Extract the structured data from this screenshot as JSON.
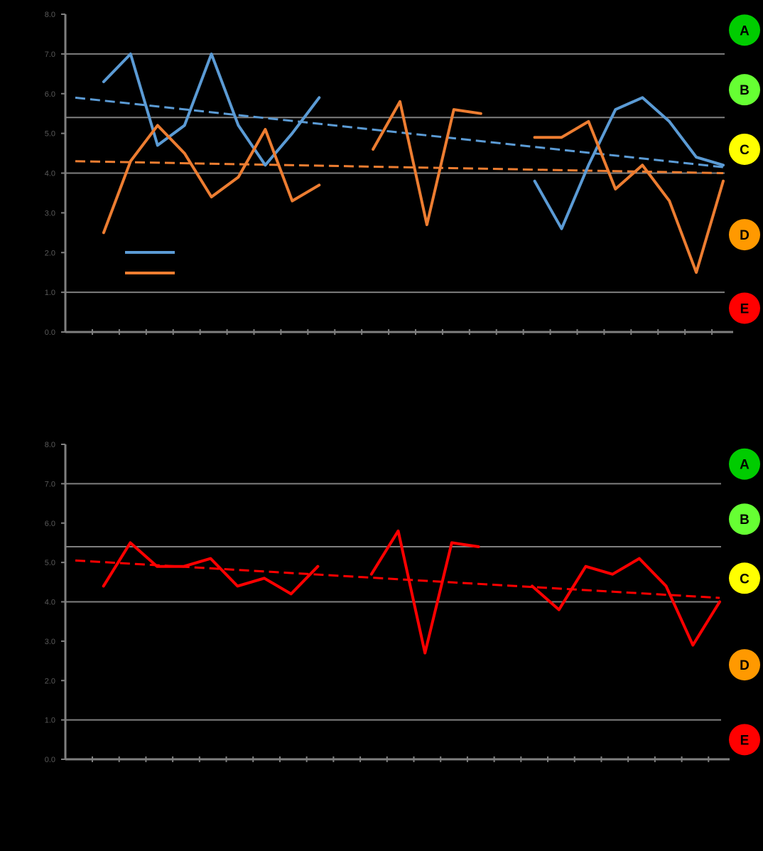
{
  "colors": {
    "background": "#000000",
    "axis": "#7f7f7f",
    "grid": "#7f7f7f",
    "label": "#595959",
    "series_blue": "#5b9bd5",
    "series_orange": "#ed7d31",
    "series_red": "#ff0000",
    "grade_A": "#00cc00",
    "grade_B": "#66ff33",
    "grade_C": "#ffff00",
    "grade_D": "#ff9900",
    "grade_E": "#ff0000"
  },
  "chart_data": [
    {
      "type": "line",
      "ylim": [
        0,
        8
      ],
      "yticks": [
        "0.0",
        "1.0",
        "2.0",
        "3.0",
        "4.0",
        "5.0",
        "6.0",
        "7.0",
        "8.0"
      ],
      "grid_lines": [
        1.0,
        4.0,
        5.4,
        7.0
      ],
      "grades": [
        {
          "label": "A",
          "y": 7.6,
          "color": "#00cc00"
        },
        {
          "label": "B",
          "y": 6.1,
          "color": "#66ff33"
        },
        {
          "label": "C",
          "y": 4.6,
          "color": "#ffff00"
        },
        {
          "label": "D",
          "y": 2.45,
          "color": "#ff9900"
        },
        {
          "label": "E",
          "y": 0.6,
          "color": "#ff0000"
        }
      ],
      "category_count": 25,
      "series": [
        {
          "color": "#5b9bd5",
          "values": [
            null,
            6.3,
            7.0,
            4.7,
            5.2,
            7.0,
            5.2,
            4.2,
            5.0,
            5.9,
            null,
            null,
            null,
            null,
            null,
            null,
            null,
            3.8,
            2.6,
            4.2,
            5.6,
            5.9,
            5.3,
            4.4,
            4.2
          ],
          "trend": [
            5.9,
            4.15
          ]
        },
        {
          "color": "#ed7d31",
          "values": [
            null,
            2.5,
            4.3,
            5.2,
            4.5,
            3.4,
            3.9,
            5.1,
            3.3,
            3.7,
            null,
            4.6,
            5.8,
            2.7,
            5.6,
            5.5,
            null,
            4.9,
            4.9,
            5.3,
            3.6,
            4.2,
            3.3,
            1.5,
            3.8
          ],
          "trend": [
            4.3,
            4.0
          ]
        }
      ],
      "legend": [
        {
          "color": "#5b9bd5"
        },
        {
          "color": "#ed7d31"
        }
      ]
    },
    {
      "type": "line",
      "ylim": [
        0,
        8
      ],
      "yticks": [
        "0.0",
        "1.0",
        "2.0",
        "3.0",
        "4.0",
        "5.0",
        "6.0",
        "7.0",
        "8.0"
      ],
      "grid_lines": [
        1.0,
        4.0,
        5.4,
        7.0
      ],
      "grades": [
        {
          "label": "A",
          "y": 7.5,
          "color": "#00cc00"
        },
        {
          "label": "B",
          "y": 6.1,
          "color": "#66ff33"
        },
        {
          "label": "C",
          "y": 4.6,
          "color": "#ffff00"
        },
        {
          "label": "D",
          "y": 2.4,
          "color": "#ff9900"
        },
        {
          "label": "E",
          "y": 0.5,
          "color": "#ff0000"
        }
      ],
      "category_count": 25,
      "series": [
        {
          "color": "#ff0000",
          "values": [
            null,
            4.4,
            5.5,
            4.9,
            4.9,
            5.1,
            4.4,
            4.6,
            4.2,
            4.9,
            null,
            4.7,
            5.8,
            2.7,
            5.5,
            5.4,
            null,
            4.4,
            3.8,
            4.9,
            4.7,
            5.1,
            4.4,
            2.9,
            4.0
          ],
          "trend": [
            5.05,
            4.1
          ]
        }
      ]
    }
  ]
}
